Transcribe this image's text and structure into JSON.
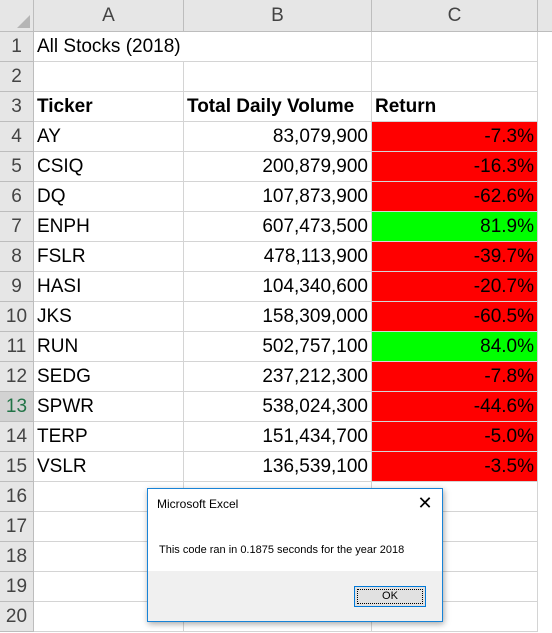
{
  "columns": [
    "A",
    "B",
    "C"
  ],
  "row_numbers": [
    "1",
    "2",
    "3",
    "4",
    "5",
    "6",
    "7",
    "8",
    "9",
    "10",
    "11",
    "12",
    "13",
    "14",
    "15",
    "16",
    "17",
    "18",
    "19",
    "20"
  ],
  "sheet": {
    "title": "All Stocks (2018)",
    "headers": {
      "ticker": "Ticker",
      "volume": "Total Daily Volume",
      "return": "Return"
    },
    "rows": [
      {
        "ticker": "AY",
        "volume": "83,079,900",
        "return": "-7.3%",
        "positive": false
      },
      {
        "ticker": "CSIQ",
        "volume": "200,879,900",
        "return": "-16.3%",
        "positive": false
      },
      {
        "ticker": "DQ",
        "volume": "107,873,900",
        "return": "-62.6%",
        "positive": false
      },
      {
        "ticker": "ENPH",
        "volume": "607,473,500",
        "return": "81.9%",
        "positive": true
      },
      {
        "ticker": "FSLR",
        "volume": "478,113,900",
        "return": "-39.7%",
        "positive": false
      },
      {
        "ticker": "HASI",
        "volume": "104,340,600",
        "return": "-20.7%",
        "positive": false
      },
      {
        "ticker": "JKS",
        "volume": "158,309,000",
        "return": "-60.5%",
        "positive": false
      },
      {
        "ticker": "RUN",
        "volume": "502,757,100",
        "return": "84.0%",
        "positive": true
      },
      {
        "ticker": "SEDG",
        "volume": "237,212,300",
        "return": "-7.8%",
        "positive": false
      },
      {
        "ticker": "SPWR",
        "volume": "538,024,300",
        "return": "-44.6%",
        "positive": false
      },
      {
        "ticker": "TERP",
        "volume": "151,434,700",
        "return": "-5.0%",
        "positive": false
      },
      {
        "ticker": "VSLR",
        "volume": "136,539,100",
        "return": "-3.5%",
        "positive": false
      }
    ]
  },
  "dialog": {
    "title": "Microsoft Excel",
    "message": "This code ran in 0.1875 seconds for the year 2018",
    "ok_label": "OK",
    "close_icon": "close-icon"
  },
  "colors": {
    "negative": "#ff0000",
    "positive": "#00ff00",
    "accent": "#217346"
  }
}
